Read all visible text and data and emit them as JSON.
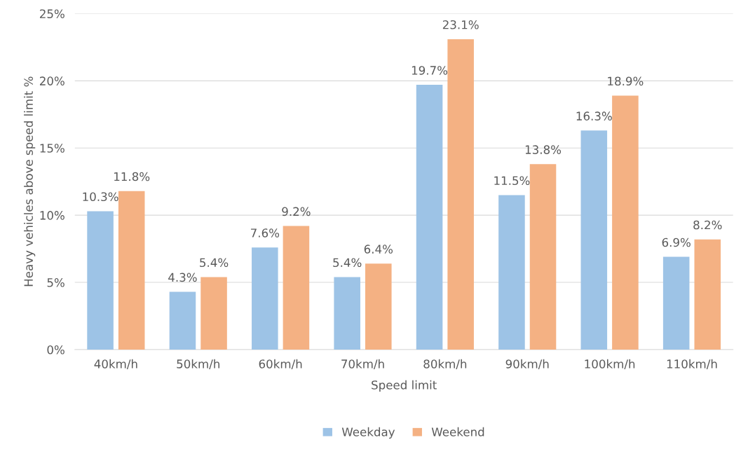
{
  "chart_data": {
    "type": "bar",
    "xlabel": "Speed limit",
    "ylabel": "Heavy vehicles above speed limit %",
    "categories": [
      "40km/h",
      "50km/h",
      "60km/h",
      "70km/h",
      "80km/h",
      "90km/h",
      "100km/h",
      "110km/h"
    ],
    "series": [
      {
        "name": "Weekday",
        "color": "#9dc3e6",
        "values": [
          10.3,
          4.3,
          7.6,
          5.4,
          19.7,
          11.5,
          16.3,
          6.9
        ],
        "value_labels": [
          "10.3%",
          "4.3%",
          "7.6%",
          "5.4%",
          "19.7%",
          "11.5%",
          "16.3%",
          "6.9%"
        ]
      },
      {
        "name": "Weekend",
        "color": "#f4b183",
        "values": [
          11.8,
          5.4,
          9.2,
          6.4,
          23.1,
          13.8,
          18.9,
          8.2
        ],
        "value_labels": [
          "11.8%",
          "5.4%",
          "9.2%",
          "6.4%",
          "23.1%",
          "13.8%",
          "18.9%",
          "8.2%"
        ]
      }
    ],
    "ylim": [
      0,
      25
    ],
    "yticks": [
      {
        "value": 0,
        "label": "0%"
      },
      {
        "value": 5,
        "label": "5%"
      },
      {
        "value": 10,
        "label": "10%"
      },
      {
        "value": 15,
        "label": "15%"
      },
      {
        "value": 20,
        "label": "20%"
      },
      {
        "value": 25,
        "label": "25%"
      }
    ],
    "grid": "y",
    "legend": "bottom"
  }
}
